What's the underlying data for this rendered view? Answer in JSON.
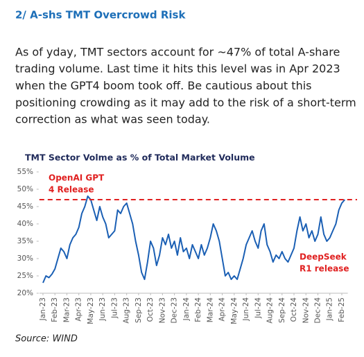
{
  "header": {
    "title": "2/ A-shs TMT Overcrowd Risk"
  },
  "body": {
    "lines": [
      "As of yday, TMT sectors account for ~47% of total A-share",
      "trading volume. Last time it hits this level was in Apr 2023",
      "when the GPT4 boom took off. Be cautious about this",
      "positioning crowding as it may add to the risk of a short-term",
      "correction as what was seen today."
    ]
  },
  "chart_data": {
    "type": "line",
    "title": "TMT Sector Volme as % of Total Market Volume",
    "color": "#1a5fb4",
    "x": [
      0,
      0.25,
      0.5,
      0.75,
      1,
      1.25,
      1.5,
      1.75,
      2,
      2.25,
      2.5,
      2.75,
      3,
      3.25,
      3.5,
      3.75,
      4,
      4.25,
      4.5,
      4.75,
      5,
      5.25,
      5.5,
      5.75,
      6,
      6.25,
      6.5,
      6.75,
      7,
      7.25,
      7.5,
      7.75,
      8,
      8.25,
      8.5,
      8.75,
      9,
      9.25,
      9.5,
      9.75,
      10,
      10.25,
      10.5,
      10.75,
      11,
      11.25,
      11.5,
      11.75,
      12,
      12.25,
      12.5,
      12.75,
      13,
      13.25,
      13.5,
      13.75,
      14,
      14.25,
      14.5,
      14.75,
      15,
      15.25,
      15.5,
      15.75,
      16,
      16.25,
      16.5,
      16.75,
      17,
      17.25,
      17.5,
      17.75,
      18,
      18.25,
      18.5,
      18.75,
      19,
      19.25,
      19.5,
      19.75,
      20,
      20.25,
      20.5,
      20.75,
      21,
      21.25,
      21.5,
      21.75,
      22,
      22.25,
      22.5,
      22.75,
      23,
      23.25,
      23.5,
      23.75,
      24,
      24.25,
      24.5,
      24.75,
      25,
      25.25
    ],
    "values": [
      23,
      25,
      24.5,
      25.5,
      27,
      30,
      33,
      32,
      30,
      34,
      36,
      37,
      39,
      43,
      45,
      48,
      47,
      44,
      41,
      45,
      42,
      40,
      36,
      37,
      38,
      44,
      43,
      45,
      46,
      43,
      40,
      35,
      31,
      26,
      24,
      29,
      35,
      33,
      28,
      31,
      36,
      34,
      37,
      33,
      35,
      31,
      36,
      32,
      33,
      30,
      34,
      32,
      30,
      34,
      31,
      33,
      36,
      40,
      38,
      35,
      30,
      25,
      26,
      24,
      25,
      24,
      27,
      30,
      34,
      36,
      38,
      35,
      33,
      38,
      40,
      34,
      32,
      29,
      31,
      30,
      32,
      30,
      29,
      31,
      33,
      38,
      42,
      38,
      40,
      36,
      38,
      35,
      37,
      42,
      37,
      35,
      36,
      38,
      40,
      44,
      46,
      47
    ],
    "xlim": [
      -0.3,
      25.5
    ],
    "xticks": [
      {
        "value": 0,
        "label": "Jan-23"
      },
      {
        "value": 1,
        "label": "Feb-23"
      },
      {
        "value": 2,
        "label": "Mar-23"
      },
      {
        "value": 3,
        "label": "Apr-23"
      },
      {
        "value": 4,
        "label": "May-23"
      },
      {
        "value": 5,
        "label": "Jun-23"
      },
      {
        "value": 6,
        "label": "Jul-23"
      },
      {
        "value": 7,
        "label": "Aug-23"
      },
      {
        "value": 8,
        "label": "Sep-23"
      },
      {
        "value": 9,
        "label": "Oct-23"
      },
      {
        "value": 10,
        "label": "Nov-23"
      },
      {
        "value": 11,
        "label": "Dec-23"
      },
      {
        "value": 12,
        "label": "Jan-24"
      },
      {
        "value": 13,
        "label": "Feb-24"
      },
      {
        "value": 14,
        "label": "Mar-24"
      },
      {
        "value": 15,
        "label": "Apr-24"
      },
      {
        "value": 16,
        "label": "May-24"
      },
      {
        "value": 17,
        "label": "Jun-24"
      },
      {
        "value": 18,
        "label": "Jul-24"
      },
      {
        "value": 19,
        "label": "Aug-24"
      },
      {
        "value": 20,
        "label": "Sep-24"
      },
      {
        "value": 21,
        "label": "Oct-24"
      },
      {
        "value": 22,
        "label": "Nov-24"
      },
      {
        "value": 23,
        "label": "Dec-24"
      },
      {
        "value": 24,
        "label": "Jan-25"
      },
      {
        "value": 25,
        "label": "Feb-25"
      }
    ],
    "ylim": [
      20,
      55
    ],
    "yticks": [
      {
        "value": 20,
        "label": "20%"
      },
      {
        "value": 25,
        "label": "25%"
      },
      {
        "value": 30,
        "label": "30%"
      },
      {
        "value": 35,
        "label": "35%"
      },
      {
        "value": 40,
        "label": "40%"
      },
      {
        "value": 45,
        "label": "45%"
      },
      {
        "value": 50,
        "label": "50%"
      },
      {
        "value": 55,
        "label": "55%"
      }
    ],
    "reference_line": {
      "value": 47,
      "color": "#e02020"
    },
    "annotations": [
      {
        "lines": [
          "OpenAI GPT",
          "4 Release"
        ]
      },
      {
        "lines": [
          "DeepSeek",
          "R1 release"
        ]
      }
    ],
    "source": "Source: WIND"
  }
}
